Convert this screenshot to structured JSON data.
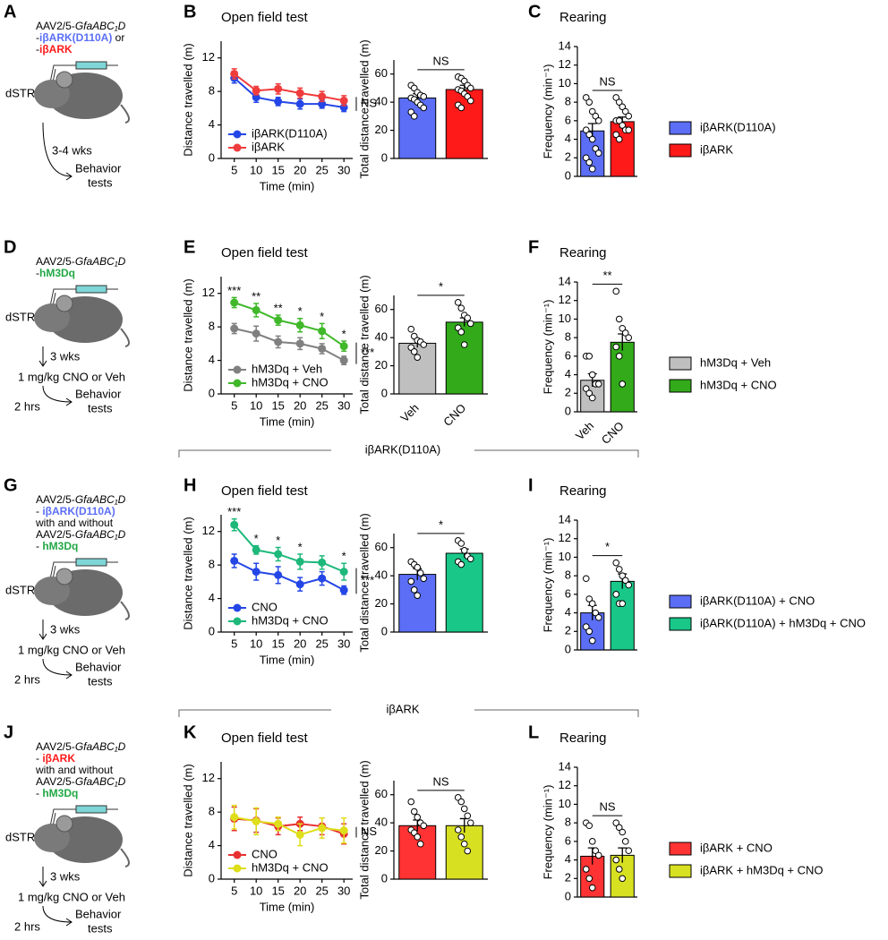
{
  "schematics": [
    {
      "panel": "A",
      "lines": [
        [
          {
            "text": "AAV2/5-"
          },
          {
            "text": "GfaABC₁D",
            "style": "italic"
          }
        ],
        [
          {
            "text": "-"
          },
          {
            "text": "iβARK(D110A)",
            "color": "#5b6ef5",
            "style": "bold"
          },
          {
            "text": " or"
          }
        ],
        [
          {
            "text": "-"
          },
          {
            "text": "iβARK",
            "color": "#ff1a1a",
            "style": "bold"
          }
        ]
      ],
      "region": "dSTR",
      "wait": "3-4 wks",
      "outcome": [
        "Behavior",
        "tests"
      ]
    },
    {
      "panel": "D",
      "lines": [
        [
          {
            "text": "AAV2/5-"
          },
          {
            "text": "GfaABC₁D",
            "style": "italic"
          }
        ],
        [
          {
            "text": "-"
          },
          {
            "text": "hM3Dq",
            "color": "#22a845",
            "style": "bold"
          }
        ]
      ],
      "region": "dSTR",
      "wait": "3 wks",
      "dose": "1 mg/kg CNO or Veh",
      "delay": "2 hrs",
      "outcome": [
        "Behavior",
        "tests"
      ]
    },
    {
      "panel": "G",
      "lines": [
        [
          {
            "text": "AAV2/5-"
          },
          {
            "text": "GfaABC₁D",
            "style": "italic"
          }
        ],
        [
          {
            "text": "- "
          },
          {
            "text": "iβARK(D110A)",
            "color": "#5b6ef5",
            "style": "bold"
          }
        ],
        [
          {
            "text": "with and without"
          }
        ],
        [
          {
            "text": "AAV2/5-"
          },
          {
            "text": "GfaABC₁D",
            "style": "italic"
          }
        ],
        [
          {
            "text": "- "
          },
          {
            "text": "hM3Dq",
            "color": "#22a845",
            "style": "bold"
          }
        ]
      ],
      "region": "dSTR",
      "wait": "3 wks",
      "dose": "1 mg/kg CNO or Veh",
      "delay": "2 hrs",
      "outcome": [
        "Behavior",
        "tests"
      ]
    },
    {
      "panel": "J",
      "lines": [
        [
          {
            "text": "AAV2/5-"
          },
          {
            "text": "GfaABC₁D",
            "style": "italic"
          }
        ],
        [
          {
            "text": "- "
          },
          {
            "text": "iβARK",
            "color": "#ff1a1a",
            "style": "bold"
          }
        ],
        [
          {
            "text": "with and without"
          }
        ],
        [
          {
            "text": "AAV2/5-"
          },
          {
            "text": "GfaABC₁D",
            "style": "italic"
          }
        ],
        [
          {
            "text": "- "
          },
          {
            "text": "hM3Dq",
            "color": "#22a845",
            "style": "bold"
          }
        ]
      ],
      "region": "dSTR",
      "wait": "3 wks",
      "dose": "1 mg/kg CNO or Veh",
      "delay": "2 hrs",
      "outcome": [
        "Behavior",
        "tests"
      ]
    }
  ],
  "groups": [
    {
      "label": "iβARK(D110A)"
    },
    {
      "label": "iβARK"
    }
  ],
  "chart_data": [
    {
      "type": "line",
      "panel": "B",
      "title": "Open field test",
      "xlabel": "Time (min)",
      "ylabel": "Distance travelled (m)",
      "x": [
        5,
        10,
        15,
        20,
        25,
        30
      ],
      "xlim": [
        2,
        32
      ],
      "xticks": [
        5,
        10,
        15,
        20,
        25,
        30
      ],
      "ylim": [
        0,
        14
      ],
      "yticks": [
        0,
        4,
        8,
        12
      ],
      "series": [
        {
          "name": "iβARK(D110A)",
          "color": "#2446e6",
          "values": [
            9.6,
            7.3,
            6.8,
            6.5,
            6.5,
            6.1
          ],
          "errors": [
            0.6,
            0.6,
            0.5,
            0.6,
            0.5,
            0.5
          ]
        },
        {
          "name": "iβARK",
          "color": "#f03c3c",
          "values": [
            10.1,
            8.1,
            8.3,
            7.8,
            7.4,
            6.9
          ],
          "errors": [
            0.6,
            0.5,
            0.6,
            0.6,
            0.6,
            0.6
          ]
        }
      ],
      "bracket": "NS"
    },
    {
      "type": "bar",
      "ylabel": "Total distance travelled (m)",
      "categories": [
        null,
        null
      ],
      "values": [
        43,
        49
      ],
      "errors": [
        3,
        3
      ],
      "colors": [
        "#5b6ef5",
        "#ff1a1a"
      ],
      "points": [
        [
          52,
          50,
          47,
          45,
          44,
          43,
          42,
          40,
          38,
          36,
          33,
          30
        ],
        [
          58,
          57,
          55,
          52,
          50,
          49,
          48,
          46,
          44,
          41,
          38,
          36
        ]
      ],
      "ylim": [
        0,
        70
      ],
      "yticks": [
        0,
        20,
        40,
        60
      ],
      "annotation": "NS"
    },
    {
      "type": "bar",
      "panel": "C",
      "title": "Rearing",
      "ylabel": "Frequency (min⁻¹)",
      "categories": [
        null,
        null
      ],
      "values": [
        4.9,
        5.9
      ],
      "errors": [
        0.8,
        0.5
      ],
      "colors": [
        "#5b6ef5",
        "#ff1a1a"
      ],
      "points": [
        [
          8.5,
          8,
          7,
          6.5,
          6,
          5,
          4.5,
          4,
          3,
          2.5,
          2,
          1.5,
          0.8
        ],
        [
          8.5,
          8,
          7.5,
          7,
          6.5,
          6,
          6,
          5.5,
          5,
          5,
          4.5,
          4
        ]
      ],
      "ylim": [
        0,
        14
      ],
      "yticks": [
        0,
        2,
        4,
        6,
        8,
        10,
        12,
        14
      ],
      "annotation": "NS",
      "legend": [
        "iβARK(D110A)",
        "iβARK"
      ]
    },
    {
      "type": "line",
      "panel": "E",
      "title": "Open field test",
      "xlabel": "Time (min)",
      "ylabel": "Distance travelled (m)",
      "x": [
        5,
        10,
        15,
        20,
        25,
        30
      ],
      "xlim": [
        2,
        32
      ],
      "xticks": [
        5,
        10,
        15,
        20,
        25,
        30
      ],
      "ylim": [
        0,
        14
      ],
      "yticks": [
        0,
        4,
        8,
        12
      ],
      "series": [
        {
          "name": "hM3Dq + Veh",
          "color": "#808080",
          "values": [
            7.8,
            7.2,
            6.2,
            6.0,
            5.4,
            4.0
          ],
          "errors": [
            0.6,
            0.9,
            0.7,
            0.7,
            0.6,
            0.5
          ]
        },
        {
          "name": "hM3Dq + CNO",
          "color": "#40b82a",
          "values": [
            10.9,
            10.0,
            8.8,
            8.2,
            7.5,
            5.7
          ],
          "errors": [
            0.6,
            0.8,
            0.6,
            0.8,
            0.9,
            0.6
          ]
        }
      ],
      "annotations": [
        "***",
        "**",
        "**",
        "*",
        "*",
        "*"
      ],
      "bracket": "***"
    },
    {
      "type": "bar",
      "ylabel": "Total distance travelled (m)",
      "categories": [
        "Veh",
        "CNO"
      ],
      "values": [
        36,
        51
      ],
      "errors": [
        3,
        3
      ],
      "colors": [
        "#bfbfbf",
        "#33aa1a"
      ],
      "points": [
        [
          46,
          41,
          38,
          37,
          35,
          33,
          30,
          26
        ],
        [
          65,
          61,
          56,
          54,
          50,
          47,
          44,
          35
        ]
      ],
      "ylim": [
        0,
        70
      ],
      "yticks": [
        0,
        20,
        40,
        60
      ],
      "annotation": "*"
    },
    {
      "type": "bar",
      "panel": "F",
      "title": "Rearing",
      "ylabel": "Frequency (min⁻¹)",
      "categories": [
        "Veh",
        "CNO"
      ],
      "values": [
        3.4,
        7.5
      ],
      "errors": [
        0.7,
        0.9
      ],
      "colors": [
        "#bfbfbf",
        "#33aa1a"
      ],
      "points": [
        [
          6,
          6,
          4,
          3,
          3,
          2.5,
          2,
          1.5
        ],
        [
          13,
          10,
          9,
          8.5,
          8,
          7,
          6,
          3
        ]
      ],
      "ylim": [
        0,
        14
      ],
      "yticks": [
        0,
        2,
        4,
        6,
        8,
        10,
        12,
        14
      ],
      "annotation": "**",
      "legend": [
        "hM3Dq + Veh",
        "hM3Dq + CNO"
      ]
    },
    {
      "type": "line",
      "panel": "H",
      "title": "Open field test",
      "xlabel": "Time (min)",
      "ylabel": "Distance travelled (m)",
      "x": [
        5,
        10,
        15,
        20,
        25,
        30
      ],
      "xlim": [
        2,
        32
      ],
      "xticks": [
        5,
        10,
        15,
        20,
        25,
        30
      ],
      "ylim": [
        0,
        14
      ],
      "yticks": [
        0,
        4,
        8,
        12
      ],
      "series": [
        {
          "name": "CNO",
          "color": "#2446e6",
          "values": [
            8.5,
            7.2,
            6.8,
            5.7,
            6.4,
            5.0
          ],
          "errors": [
            0.8,
            1.0,
            1.0,
            0.8,
            0.8,
            0.5
          ]
        },
        {
          "name": "hM3Dq + CNO",
          "color": "#1db87a",
          "values": [
            12.8,
            9.8,
            9.3,
            8.4,
            8.3,
            7.2
          ],
          "errors": [
            0.7,
            0.5,
            0.8,
            0.9,
            0.8,
            1.0
          ]
        }
      ],
      "annotations": [
        "***",
        "*",
        "*",
        "*",
        null,
        "*"
      ],
      "bracket": "***"
    },
    {
      "type": "bar",
      "ylabel": "Total distance travelled (m)",
      "categories": [
        null,
        null
      ],
      "values": [
        41,
        56
      ],
      "errors": [
        4,
        3
      ],
      "colors": [
        "#5b6ef5",
        "#19c889"
      ],
      "points": [
        [
          50,
          48,
          46,
          42,
          38,
          36,
          30,
          26
        ],
        [
          65,
          63,
          58,
          54,
          52,
          50,
          48
        ]
      ],
      "ylim": [
        0,
        70
      ],
      "yticks": [
        0,
        20,
        40,
        60
      ],
      "annotation": "*"
    },
    {
      "type": "bar",
      "panel": "I",
      "title": "Rearing",
      "ylabel": "Frequency (min⁻¹)",
      "categories": [
        null,
        null
      ],
      "values": [
        4.0,
        7.4
      ],
      "errors": [
        0.8,
        0.8
      ],
      "colors": [
        "#5b6ef5",
        "#19c889"
      ],
      "points": [
        [
          7.7,
          5.5,
          5,
          4,
          3.5,
          2.5,
          2,
          1
        ],
        [
          9.4,
          8.7,
          8,
          7.5,
          7,
          6,
          5,
          5
        ]
      ],
      "ylim": [
        0,
        14
      ],
      "yticks": [
        0,
        2,
        4,
        6,
        8,
        10,
        12,
        14
      ],
      "annotation": "*",
      "legend": [
        "iβARK(D110A) + CNO",
        "iβARK(D110A) + hM3Dq + CNO"
      ]
    },
    {
      "type": "line",
      "panel": "K",
      "title": "Open field test",
      "xlabel": "Time (min)",
      "ylabel": "Distance travelled (m)",
      "x": [
        5,
        10,
        15,
        20,
        25,
        30
      ],
      "xlim": [
        2,
        32
      ],
      "xticks": [
        5,
        10,
        15,
        20,
        25,
        30
      ],
      "ylim": [
        0,
        14
      ],
      "yticks": [
        0,
        4,
        8,
        12
      ],
      "series": [
        {
          "name": "CNO",
          "color": "#e83030",
          "values": [
            7.2,
            7.0,
            6.3,
            6.6,
            6.3,
            5.4
          ],
          "errors": [
            1.4,
            1.4,
            1.0,
            0.8,
            1.0,
            1.2
          ]
        },
        {
          "name": "hM3Dq + CNO",
          "color": "#dede1a",
          "values": [
            7.4,
            6.9,
            6.6,
            5.3,
            6.1,
            5.8
          ],
          "errors": [
            1.4,
            1.6,
            0.8,
            1.3,
            1.2,
            1.5
          ]
        }
      ],
      "bracket": "NS"
    },
    {
      "type": "bar",
      "ylabel": "Total distance travelled (m)",
      "categories": [
        null,
        null
      ],
      "values": [
        38,
        38
      ],
      "errors": [
        4,
        5
      ],
      "colors": [
        "#ff3333",
        "#d8e022"
      ],
      "points": [
        [
          55,
          48,
          44,
          40,
          38,
          35,
          33,
          30,
          25
        ],
        [
          58,
          55,
          50,
          45,
          40,
          35,
          30,
          25,
          20
        ]
      ],
      "ylim": [
        0,
        70
      ],
      "yticks": [
        0,
        20,
        40,
        60
      ],
      "annotation": "NS"
    },
    {
      "type": "bar",
      "panel": "L",
      "title": "Rearing",
      "ylabel": "Frequency (min⁻¹)",
      "categories": [
        null,
        null
      ],
      "values": [
        4.4,
        4.5
      ],
      "errors": [
        0.9,
        0.8
      ],
      "colors": [
        "#ff3333",
        "#d8e022"
      ],
      "points": [
        [
          8,
          7.7,
          6,
          5,
          4.5,
          3,
          2,
          1
        ],
        [
          8,
          7.5,
          7,
          6,
          5,
          4,
          3,
          2
        ]
      ],
      "ylim": [
        0,
        14
      ],
      "yticks": [
        0,
        2,
        4,
        6,
        8,
        10,
        12,
        14
      ],
      "annotation": "NS",
      "legend": [
        "iβARK + CNO",
        "iβARK + hM3Dq + CNO"
      ]
    }
  ]
}
